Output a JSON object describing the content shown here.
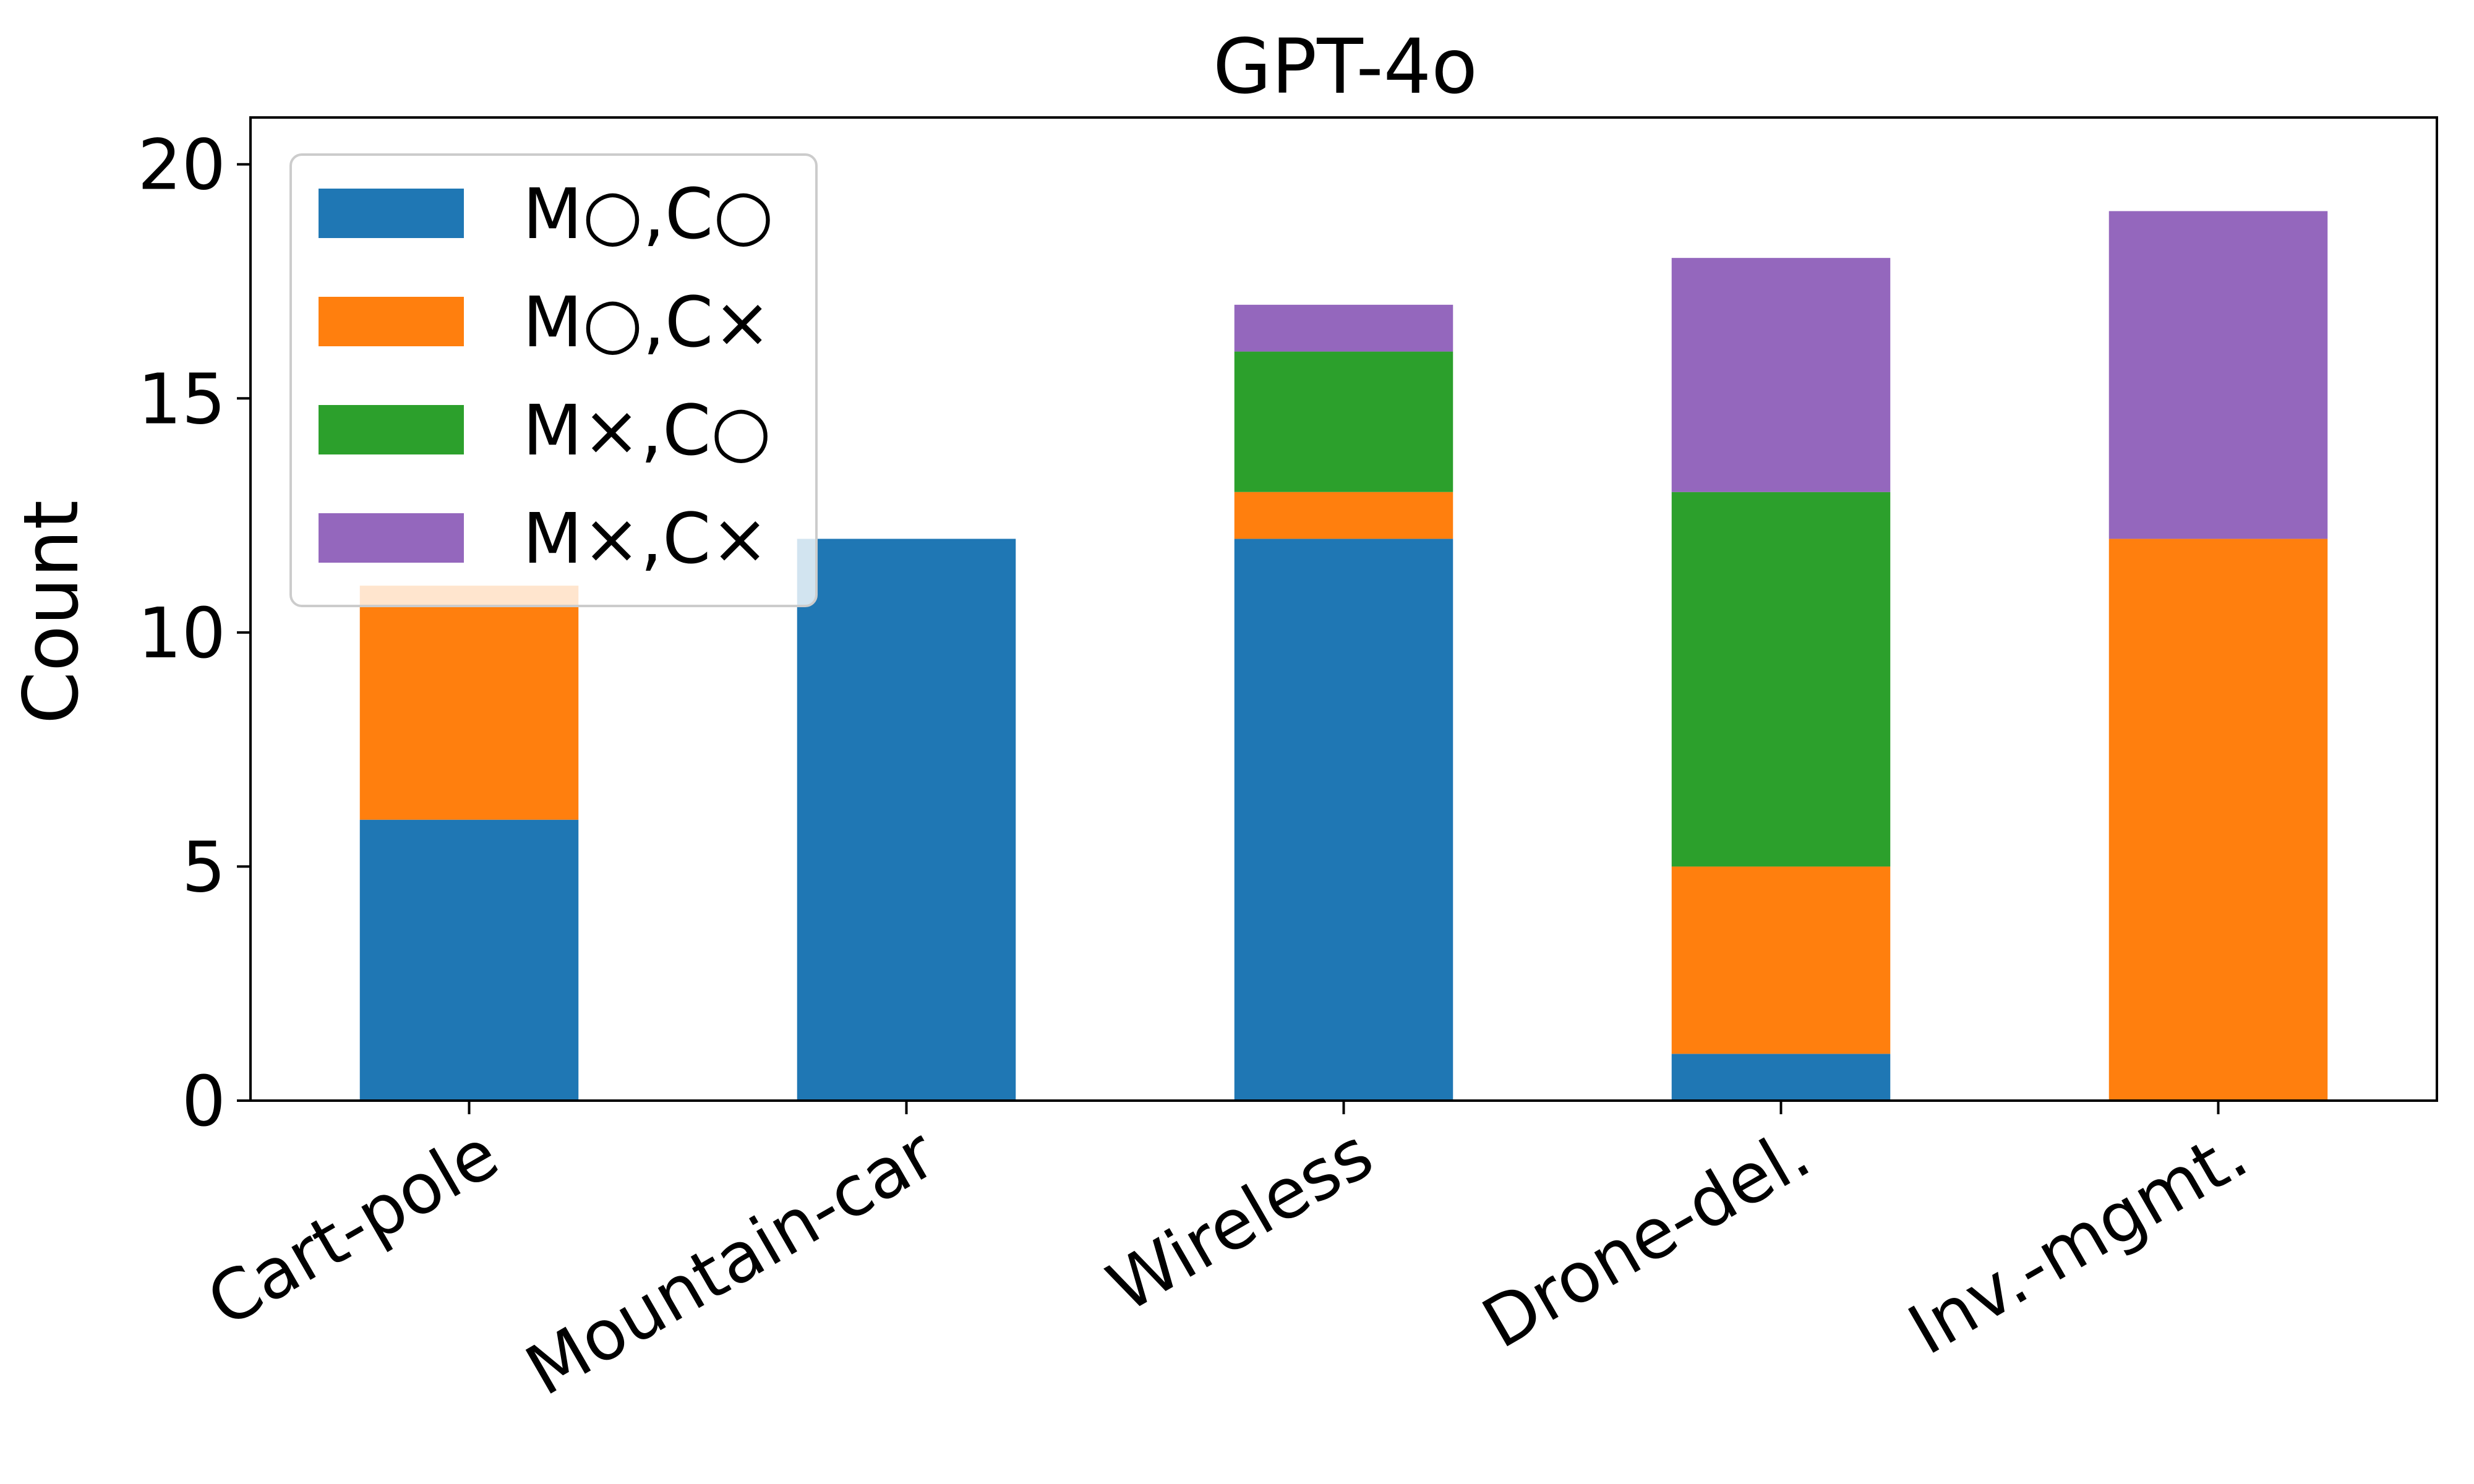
{
  "chart_data": {
    "type": "bar",
    "stacked": true,
    "title": "GPT-4o",
    "xlabel": "",
    "ylabel": "Count",
    "ylim": [
      0,
      21
    ],
    "yticks": [
      0,
      5,
      10,
      15,
      20
    ],
    "categories": [
      "Cart-pole",
      "Mountain-car",
      "Wireless",
      "Drone-del.",
      "Inv.-mgmt."
    ],
    "series": [
      {
        "name": "M○,C○",
        "color": "#1f77b4",
        "values": [
          6,
          12,
          12,
          1,
          0
        ]
      },
      {
        "name": "M○,C×",
        "color": "#ff7f0e",
        "values": [
          5,
          0,
          1,
          4,
          12
        ]
      },
      {
        "name": "M×,C○",
        "color": "#2ca02c",
        "values": [
          0,
          0,
          3,
          8,
          0
        ]
      },
      {
        "name": "M×,C×",
        "color": "#9467bd",
        "values": [
          0,
          0,
          1,
          5,
          7
        ]
      }
    ],
    "legend_position": "top-left",
    "grid": false
  }
}
